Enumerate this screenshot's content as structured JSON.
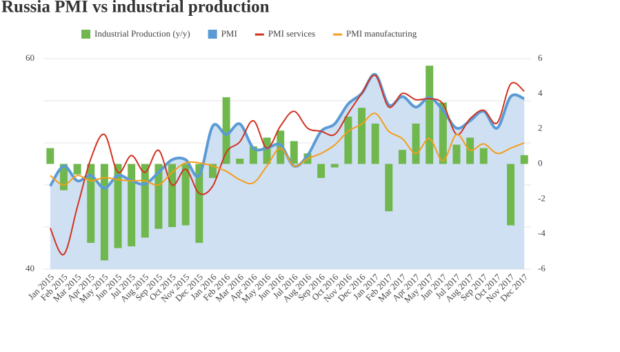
{
  "chart_data": {
    "type": "combo",
    "title": "Russia PMI vs industrial production",
    "categories": [
      "Jan 2015",
      "Feb 2015",
      "Mar 2015",
      "Apr 2015",
      "May 2015",
      "Jun 2015",
      "Jul 2015",
      "Aug 2015",
      "Sep 2015",
      "Oct 2015",
      "Nov 2015",
      "Dec 2015",
      "Jan 2016",
      "Feb 2016",
      "Mar 2016",
      "Apr 2016",
      "May 2016",
      "Jun 2016",
      "Jul 2016",
      "Aug 2016",
      "Sep 2016",
      "Oct 2016",
      "Nov 2016",
      "Dec 2016",
      "Jan 2017",
      "Feb 2017",
      "Mar 2017",
      "Apr 2017",
      "May 2017",
      "Jun 2017",
      "Jul 2017",
      "Aug 2017",
      "Sep 2017",
      "Oct 2017",
      "Nov 2017",
      "Dec 2017"
    ],
    "series": [
      {
        "name": "Industrial Production (y/y)",
        "type": "bar",
        "axis": "y2",
        "color": "#70b84e",
        "values": [
          0.9,
          -1.5,
          -0.6,
          -4.5,
          -5.5,
          -4.8,
          -4.7,
          -4.2,
          -3.7,
          -3.6,
          -3.5,
          -4.5,
          -0.8,
          3.8,
          0.3,
          1.0,
          1.5,
          1.9,
          1.3,
          0.6,
          -0.8,
          -0.2,
          2.7,
          3.2,
          2.3,
          -2.7,
          0.8,
          2.3,
          5.6,
          3.5,
          1.1,
          1.5,
          0.9,
          0,
          -3.5,
          0.5
        ]
      },
      {
        "name": "PMI",
        "type": "area",
        "color": "#5b9bd5",
        "fill": "#cfe0f3",
        "values": [
          47.9,
          49.8,
          48.4,
          48.9,
          47.7,
          48.9,
          48.4,
          48.1,
          49.2,
          50.4,
          50.4,
          48.9,
          53.6,
          52.8,
          53.8,
          51.5,
          51.5,
          51.8,
          49.8,
          50.8,
          53.1,
          53.8,
          55.7,
          56.7,
          58.5,
          55.6,
          56.4,
          55.4,
          56.3,
          55.1,
          53.4,
          54.1,
          55.0,
          53.4,
          56.4,
          56.2
        ]
      },
      {
        "name": "PMI services",
        "type": "line",
        "color": "#d2311e",
        "values": [
          43.9,
          41.4,
          45.9,
          50.5,
          52.8,
          49.2,
          50.8,
          49.2,
          51.3,
          48.0,
          49.5,
          47.2,
          47.9,
          51.1,
          52.1,
          54.1,
          51.5,
          53.6,
          55.0,
          53.4,
          53.1,
          52.8,
          54.8,
          56.7,
          58.4,
          55.4,
          56.7,
          56.1,
          56.2,
          55.7,
          52.8,
          54.3,
          55.1,
          53.9,
          57.6,
          56.9
        ]
      },
      {
        "name": "PMI manufacturing",
        "type": "line",
        "color": "#f59c1a",
        "values": [
          48.9,
          48.0,
          48.9,
          48.4,
          48.7,
          48.5,
          48.4,
          48.4,
          48.0,
          49.2,
          50.1,
          50.1,
          49.8,
          49.3,
          48.5,
          48.2,
          49.8,
          51.5,
          49.8,
          50.5,
          51.0,
          51.8,
          53.1,
          53.8,
          54.8,
          53.1,
          52.4,
          51.0,
          52.4,
          50.3,
          52.8,
          51.3,
          51.9,
          51.0,
          51.5,
          52.0
        ]
      }
    ],
    "ylim": [
      40,
      60
    ],
    "yticks": [
      40,
      60
    ],
    "ygrid": [
      40,
      44,
      48,
      52,
      56,
      60
    ],
    "y2lim": [
      -6,
      6
    ],
    "y2ticks": [
      -6,
      -4,
      -2,
      0,
      2,
      4,
      6
    ],
    "grid": true,
    "legend": "top"
  }
}
